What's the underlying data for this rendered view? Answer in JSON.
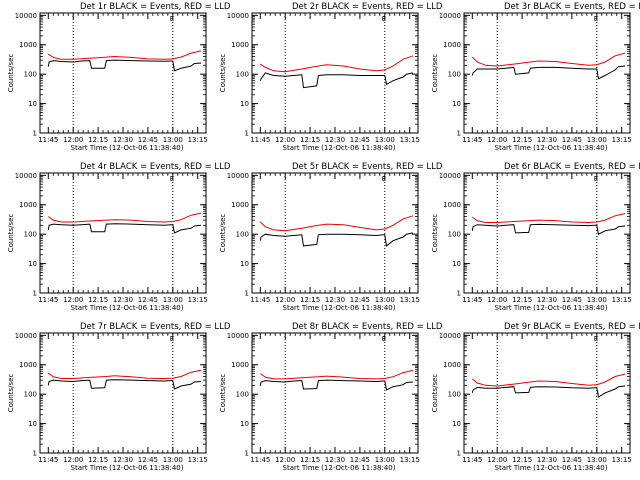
{
  "figure_note": "",
  "chart_data": [
    {
      "type": "line",
      "panel_id": "1r",
      "title": "Det 1r BLACK = Events, RED = LLD",
      "xlabel": "Start Time (12-Oct-06 11:38:40)",
      "ylabel": "Counts/sec",
      "yscale": "log",
      "ylim": [
        1,
        12000
      ],
      "xlim": [
        -5,
        95
      ],
      "x_tick_labels": [
        "11:45",
        "12:00",
        "12:15",
        "12:30",
        "12:45",
        "13:00",
        "13:15"
      ],
      "y_tick_labels": [
        "1",
        "10",
        "100",
        "1000",
        "10000"
      ],
      "markers": [
        "E"
      ],
      "series": [
        {
          "name": "Events",
          "color": "#000000",
          "x": [
            0,
            0.5,
            3,
            8,
            15,
            20,
            25,
            26,
            34,
            35,
            40,
            50,
            60,
            70,
            74,
            75,
            76,
            80,
            86,
            88,
            92
          ],
          "y": [
            180,
            260,
            290,
            270,
            260,
            280,
            290,
            160,
            160,
            290,
            300,
            290,
            280,
            275,
            280,
            280,
            130,
            160,
            190,
            230,
            240
          ]
        },
        {
          "name": "LLD",
          "color": "#ee0000",
          "x": [
            0,
            3,
            8,
            15,
            25,
            35,
            40,
            50,
            60,
            70,
            75,
            80,
            86,
            92
          ],
          "y": [
            480,
            370,
            320,
            320,
            350,
            380,
            400,
            370,
            330,
            320,
            330,
            380,
            520,
            620
          ]
        }
      ]
    },
    {
      "type": "line",
      "panel_id": "2r",
      "title": "Det 2r BLACK = Events, RED = LLD",
      "xlabel": "Start Time (12-Oct-06 11:38:40)",
      "ylabel": "Counts/sec",
      "yscale": "log",
      "ylim": [
        1,
        12000
      ],
      "xlim": [
        -5,
        95
      ],
      "x_tick_labels": [
        "11:45",
        "12:00",
        "12:15",
        "12:30",
        "12:45",
        "13:00",
        "13:15"
      ],
      "y_tick_labels": [
        "1",
        "10",
        "100",
        "1000",
        "10000"
      ],
      "markers": [
        "E"
      ],
      "series": [
        {
          "name": "Events",
          "color": "#000000",
          "x": [
            0,
            0.5,
            3,
            8,
            15,
            20,
            25,
            26,
            34,
            35,
            40,
            50,
            60,
            70,
            74,
            75,
            76,
            80,
            86,
            88,
            92
          ],
          "y": [
            60,
            70,
            110,
            90,
            85,
            90,
            95,
            35,
            40,
            90,
            95,
            95,
            90,
            90,
            90,
            90,
            45,
            60,
            80,
            100,
            110
          ]
        },
        {
          "name": "LLD",
          "color": "#ee0000",
          "x": [
            0,
            3,
            8,
            15,
            25,
            35,
            40,
            50,
            60,
            70,
            75,
            80,
            86,
            92
          ],
          "y": [
            220,
            170,
            130,
            120,
            150,
            190,
            210,
            190,
            150,
            130,
            140,
            190,
            320,
            420
          ]
        }
      ]
    },
    {
      "type": "line",
      "panel_id": "3r",
      "title": "Det 3r BLACK = Events, RED = LLD",
      "xlabel": "Start Time (12-Oct-06 11:38:40)",
      "ylabel": "Counts/sec",
      "yscale": "log",
      "ylim": [
        1,
        12000
      ],
      "xlim": [
        -5,
        95
      ],
      "x_tick_labels": [
        "11:45",
        "12:00",
        "12:15",
        "12:30",
        "12:45",
        "13:00",
        "13:15"
      ],
      "y_tick_labels": [
        "1",
        "10",
        "100",
        "1000",
        "10000"
      ],
      "markers": [
        "E"
      ],
      "series": [
        {
          "name": "Events",
          "color": "#000000",
          "x": [
            0,
            0.5,
            3,
            8,
            15,
            20,
            25,
            26,
            34,
            35,
            40,
            50,
            60,
            70,
            74,
            75,
            76,
            80,
            86,
            88,
            92
          ],
          "y": [
            90,
            110,
            150,
            150,
            150,
            160,
            170,
            100,
            110,
            160,
            170,
            170,
            160,
            150,
            150,
            150,
            70,
            90,
            140,
            180,
            190
          ]
        },
        {
          "name": "LLD",
          "color": "#ee0000",
          "x": [
            0,
            3,
            8,
            15,
            25,
            35,
            40,
            50,
            60,
            70,
            75,
            80,
            86,
            92
          ],
          "y": [
            380,
            260,
            200,
            190,
            220,
            260,
            280,
            270,
            230,
            200,
            210,
            260,
            420,
            520
          ]
        }
      ]
    },
    {
      "type": "line",
      "panel_id": "4r",
      "title": "Det 4r BLACK = Events, RED = LLD",
      "xlabel": "Start Time (12-Oct-06 11:38:40)",
      "ylabel": "Counts/sec",
      "yscale": "log",
      "ylim": [
        1,
        12000
      ],
      "xlim": [
        -5,
        95
      ],
      "x_tick_labels": [
        "11:45",
        "12:00",
        "12:15",
        "12:30",
        "12:45",
        "13:00",
        "13:15"
      ],
      "y_tick_labels": [
        "1",
        "10",
        "100",
        "1000",
        "10000"
      ],
      "markers": [
        "E"
      ],
      "series": [
        {
          "name": "Events",
          "color": "#000000",
          "x": [
            0,
            0.5,
            3,
            8,
            15,
            20,
            25,
            26,
            34,
            35,
            40,
            50,
            60,
            70,
            74,
            75,
            76,
            80,
            86,
            88,
            92
          ],
          "y": [
            140,
            200,
            220,
            210,
            200,
            210,
            220,
            120,
            120,
            220,
            225,
            220,
            210,
            200,
            210,
            210,
            110,
            140,
            160,
            190,
            200
          ]
        },
        {
          "name": "LLD",
          "color": "#ee0000",
          "x": [
            0,
            3,
            8,
            15,
            25,
            35,
            40,
            50,
            60,
            70,
            75,
            80,
            86,
            92
          ],
          "y": [
            400,
            300,
            260,
            260,
            280,
            300,
            310,
            300,
            270,
            260,
            270,
            310,
            440,
            520
          ]
        }
      ]
    },
    {
      "type": "line",
      "panel_id": "5r",
      "title": "Det 5r BLACK = Events, RED = LLD",
      "xlabel": "Start Time (12-Oct-06 11:38:40)",
      "ylabel": "Counts/sec",
      "yscale": "log",
      "ylim": [
        1,
        12000
      ],
      "xlim": [
        -5,
        95
      ],
      "x_tick_labels": [
        "11:45",
        "12:00",
        "12:15",
        "12:30",
        "12:45",
        "13:00",
        "13:15"
      ],
      "y_tick_labels": [
        "1",
        "10",
        "100",
        "1000",
        "10000"
      ],
      "markers": [
        "E"
      ],
      "series": [
        {
          "name": "Events",
          "color": "#000000",
          "x": [
            0,
            0.5,
            3,
            8,
            15,
            20,
            25,
            26,
            34,
            35,
            40,
            50,
            60,
            70,
            74,
            75,
            76,
            80,
            86,
            88,
            92
          ],
          "y": [
            60,
            80,
            100,
            90,
            85,
            90,
            95,
            40,
            45,
            95,
            100,
            100,
            95,
            90,
            95,
            95,
            40,
            60,
            80,
            100,
            110
          ]
        },
        {
          "name": "LLD",
          "color": "#ee0000",
          "x": [
            0,
            3,
            8,
            15,
            25,
            35,
            40,
            50,
            60,
            70,
            75,
            80,
            86,
            92
          ],
          "y": [
            260,
            180,
            140,
            130,
            160,
            200,
            220,
            210,
            170,
            140,
            150,
            200,
            330,
            420
          ]
        }
      ]
    },
    {
      "type": "line",
      "panel_id": "6r",
      "title": "Det 6r BLACK = Events, RED = LLD",
      "xlabel": "Start Time (12-Oct-06 11:38:40)",
      "ylabel": "Counts/sec",
      "yscale": "log",
      "ylim": [
        1,
        12000
      ],
      "xlim": [
        -5,
        95
      ],
      "x_tick_labels": [
        "11:45",
        "12:00",
        "12:15",
        "12:30",
        "12:45",
        "13:00",
        "13:15"
      ],
      "y_tick_labels": [
        "1",
        "10",
        "100",
        "1000",
        "10000"
      ],
      "markers": [
        "E"
      ],
      "series": [
        {
          "name": "Events",
          "color": "#000000",
          "x": [
            0,
            0.5,
            3,
            8,
            15,
            20,
            25,
            26,
            34,
            35,
            40,
            50,
            60,
            70,
            74,
            75,
            76,
            80,
            86,
            88,
            92
          ],
          "y": [
            130,
            180,
            210,
            200,
            190,
            200,
            210,
            110,
            115,
            210,
            215,
            210,
            200,
            195,
            200,
            200,
            100,
            130,
            150,
            180,
            190
          ]
        },
        {
          "name": "LLD",
          "color": "#ee0000",
          "x": [
            0,
            3,
            8,
            15,
            25,
            35,
            40,
            50,
            60,
            70,
            75,
            80,
            86,
            92
          ],
          "y": [
            380,
            290,
            250,
            250,
            270,
            290,
            300,
            290,
            260,
            250,
            260,
            300,
            420,
            500
          ]
        }
      ]
    },
    {
      "type": "line",
      "panel_id": "7r",
      "title": "Det 7r BLACK = Events, RED = LLD",
      "xlabel": "Start Time (12-Oct-06 11:38:40)",
      "ylabel": "Counts/sec",
      "yscale": "log",
      "ylim": [
        1,
        12000
      ],
      "xlim": [
        -5,
        95
      ],
      "x_tick_labels": [
        "11:45",
        "12:00",
        "12:15",
        "12:30",
        "12:45",
        "13:00",
        "13:15"
      ],
      "y_tick_labels": [
        "1",
        "10",
        "100",
        "1000",
        "10000"
      ],
      "markers": [
        "E"
      ],
      "series": [
        {
          "name": "Events",
          "color": "#000000",
          "x": [
            0,
            0.5,
            3,
            8,
            15,
            20,
            25,
            26,
            34,
            35,
            40,
            50,
            60,
            70,
            74,
            75,
            76,
            80,
            86,
            88,
            92
          ],
          "y": [
            200,
            270,
            300,
            280,
            270,
            290,
            300,
            160,
            165,
            300,
            310,
            300,
            290,
            280,
            290,
            290,
            150,
            190,
            220,
            260,
            270
          ]
        },
        {
          "name": "LLD",
          "color": "#ee0000",
          "x": [
            0,
            3,
            8,
            15,
            25,
            35,
            40,
            50,
            60,
            70,
            75,
            80,
            86,
            92
          ],
          "y": [
            520,
            390,
            340,
            340,
            370,
            400,
            420,
            390,
            350,
            340,
            350,
            400,
            560,
            650
          ]
        }
      ]
    },
    {
      "type": "line",
      "panel_id": "8r",
      "title": "Det 8r BLACK = Events, RED = LLD",
      "xlabel": "Start Time (12-Oct-06 11:38:40)",
      "ylabel": "Counts/sec",
      "yscale": "log",
      "ylim": [
        1,
        12000
      ],
      "xlim": [
        -5,
        95
      ],
      "x_tick_labels": [
        "11:45",
        "12:00",
        "12:15",
        "12:30",
        "12:45",
        "13:00",
        "13:15"
      ],
      "y_tick_labels": [
        "1",
        "10",
        "100",
        "1000",
        "10000"
      ],
      "markers": [
        "E"
      ],
      "series": [
        {
          "name": "Events",
          "color": "#000000",
          "x": [
            0,
            0.5,
            3,
            8,
            15,
            20,
            25,
            26,
            34,
            35,
            40,
            50,
            60,
            70,
            74,
            75,
            76,
            80,
            86,
            88,
            92
          ],
          "y": [
            190,
            260,
            290,
            270,
            260,
            280,
            290,
            150,
            155,
            290,
            300,
            290,
            280,
            270,
            280,
            280,
            140,
            180,
            210,
            250,
            260
          ]
        },
        {
          "name": "LLD",
          "color": "#ee0000",
          "x": [
            0,
            3,
            8,
            15,
            25,
            35,
            40,
            50,
            60,
            70,
            75,
            80,
            86,
            92
          ],
          "y": [
            500,
            380,
            330,
            330,
            360,
            390,
            410,
            380,
            340,
            330,
            340,
            390,
            540,
            640
          ]
        }
      ]
    },
    {
      "type": "line",
      "panel_id": "9r",
      "title": "Det 9r BLACK = Events, RED = LLD",
      "xlabel": "Start Time (12-Oct-06 11:38:40)",
      "ylabel": "Counts/sec",
      "yscale": "log",
      "ylim": [
        1,
        12000
      ],
      "xlim": [
        -5,
        95
      ],
      "x_tick_labels": [
        "11:45",
        "12:00",
        "12:15",
        "12:30",
        "12:45",
        "13:00",
        "13:15"
      ],
      "y_tick_labels": [
        "1",
        "10",
        "100",
        "1000",
        "10000"
      ],
      "markers": [
        "E"
      ],
      "series": [
        {
          "name": "Events",
          "color": "#000000",
          "x": [
            0,
            0.5,
            3,
            8,
            15,
            20,
            25,
            26,
            34,
            35,
            40,
            50,
            60,
            70,
            74,
            75,
            76,
            80,
            86,
            88,
            92
          ],
          "y": [
            110,
            140,
            170,
            160,
            160,
            170,
            180,
            110,
            115,
            170,
            180,
            175,
            165,
            160,
            165,
            165,
            80,
            110,
            150,
            180,
            190
          ]
        },
        {
          "name": "LLD",
          "color": "#ee0000",
          "x": [
            0,
            3,
            8,
            15,
            25,
            35,
            40,
            50,
            60,
            70,
            75,
            80,
            86,
            92
          ],
          "y": [
            330,
            240,
            200,
            190,
            220,
            260,
            280,
            270,
            230,
            200,
            210,
            260,
            400,
            480
          ]
        }
      ]
    }
  ]
}
